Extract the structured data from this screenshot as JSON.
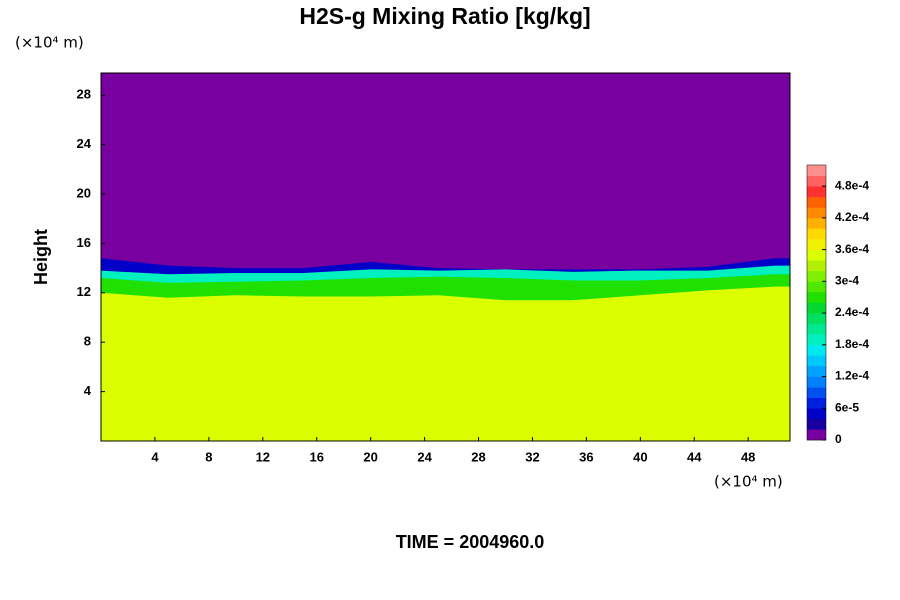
{
  "chart_data": {
    "type": "contour",
    "title": "H2S-g Mixing Ratio [kg/kg]",
    "y_label": "Height",
    "x_unit": "(×10⁴ m)",
    "y_unit": "(×10⁴ m)",
    "footer": "TIME = 2004960.0",
    "xlim": [
      0,
      51.1
    ],
    "ylim": [
      0,
      29.8
    ],
    "xticks": [
      4,
      8,
      12,
      16,
      20,
      24,
      28,
      32,
      36,
      40,
      44,
      48
    ],
    "yticks": [
      4,
      8,
      12,
      16,
      20,
      24,
      28
    ],
    "x": [
      0,
      5,
      10,
      15,
      20,
      25,
      30,
      35,
      40,
      45,
      50
    ],
    "levels": [
      {
        "value": 4e-05,
        "height": [
          14.8,
          14.2,
          14.0,
          14.0,
          14.5,
          14.0,
          13.9,
          13.9,
          13.9,
          14.1,
          14.8
        ]
      },
      {
        "value": 0.00018,
        "height": [
          13.8,
          13.5,
          13.6,
          13.6,
          13.9,
          13.8,
          13.9,
          13.7,
          13.8,
          13.8,
          14.2
        ]
      },
      {
        "value": 0.00026,
        "height": [
          13.2,
          12.8,
          12.9,
          13.0,
          13.2,
          13.3,
          13.2,
          13.0,
          13.0,
          13.2,
          13.5
        ]
      },
      {
        "value": 0.00035,
        "height": [
          12.0,
          11.6,
          11.8,
          11.7,
          11.7,
          11.8,
          11.4,
          11.4,
          11.8,
          12.2,
          12.5
        ]
      }
    ],
    "colorbar": {
      "lim": [
        0,
        0.00052
      ],
      "ticks": [
        0,
        {
          "value": 6e-05,
          "label": "6e-5"
        },
        {
          "value": 0.00012,
          "label": "1.2e-4"
        },
        {
          "value": 0.00018,
          "label": "1.8e-4"
        },
        {
          "value": 0.00024,
          "label": "2.4e-4"
        },
        {
          "value": 0.0003,
          "label": "3e-4"
        },
        {
          "value": 0.00036,
          "label": "3.6e-4"
        },
        {
          "value": 0.00042,
          "label": "4.2e-4"
        },
        {
          "value": 0.00048,
          "label": "4.8e-4"
        }
      ],
      "colors": [
        "#7800a0",
        "#1a00a0",
        "#0000c8",
        "#0020e0",
        "#0050f0",
        "#0080ff",
        "#00a0ff",
        "#00c8ff",
        "#00e8f0",
        "#00f0c0",
        "#00e890",
        "#00e060",
        "#00d830",
        "#20e000",
        "#50e800",
        "#80f000",
        "#b0f000",
        "#dcff00",
        "#f0f000",
        "#ffd800",
        "#ffb000",
        "#ff8800",
        "#ff6000",
        "#ff3030",
        "#ff6060",
        "#ff9090"
      ]
    }
  }
}
